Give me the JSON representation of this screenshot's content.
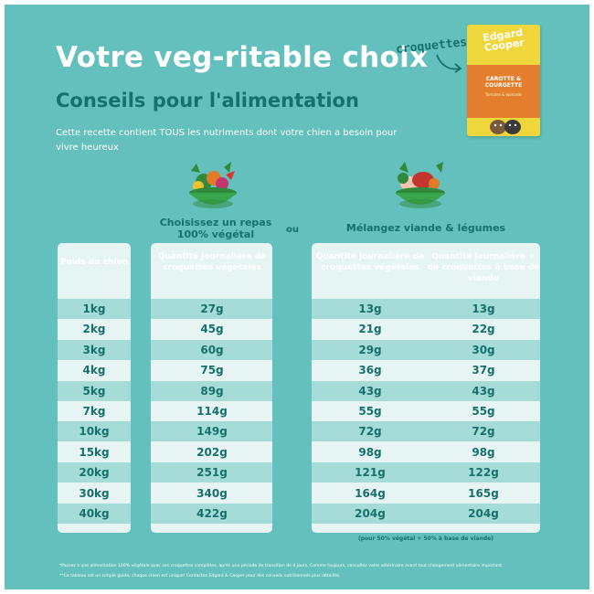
{
  "header": {
    "title": "Votre veg-ritable choix",
    "subtitle": "Conseils pour l'alimentation",
    "intro": "Cette recette contient TOUS les nutriments dont votre chien a besoin pour vivre heureux"
  },
  "product": {
    "pointer_label": "croquettes",
    "brand": "Edgard Cooper",
    "flavor": "CAROTTE & COURGETTE",
    "subline": "Tomates & épinards"
  },
  "choices": {
    "veg_heading": "Choisissez un repas 100% végétal",
    "or": "ou",
    "mix_heading": "Mélangez viande & légumes"
  },
  "table": {
    "columns": [
      "Poids du chien",
      "Quantité journalière de croquettes végétales",
      "Quantité journalière de croquettes végétales",
      "Quantité journalière + de croquettes à base de viande"
    ],
    "rows": [
      [
        "1kg",
        "27g",
        "13g",
        "13g"
      ],
      [
        "2kg",
        "45g",
        "21g",
        "22g"
      ],
      [
        "3kg",
        "60g",
        "29g",
        "30g"
      ],
      [
        "4kg",
        "75g",
        "36g",
        "37g"
      ],
      [
        "5kg",
        "89g",
        "43g",
        "43g"
      ],
      [
        "7kg",
        "114g",
        "55g",
        "55g"
      ],
      [
        "10kg",
        "149g",
        "72g",
        "72g"
      ],
      [
        "15kg",
        "202g",
        "98g",
        "98g"
      ],
      [
        "20kg",
        "251g",
        "121g",
        "122g"
      ],
      [
        "30kg",
        "340g",
        "164g",
        "165g"
      ],
      [
        "40kg",
        "422g",
        "204g",
        "204g"
      ]
    ],
    "mix_footnote": "(pour 50% végétal + 50% à base de viande)"
  },
  "notes": {
    "note1": "*Passez à une alimentation 100% végétale avec ces croquettes complètes, après une période de transition de 4 jours. Comme toujours, consultez votre vétérinaire avant tout changement alimentaire important.",
    "note2": "**Ce tableau est un simple guide, chaque chien est unique! Contactez Edgard & Cooper pour des conseils nutritionnels plus détaillés."
  },
  "colors": {
    "background": "#63c0bc",
    "dark_teal": "#17706c",
    "panel": "#e6f5f4",
    "stripe": "#a6dcd8",
    "bowl_green": "#3aa64b",
    "bag_yellow": "#efd63a"
  },
  "icons": [
    "arrow-icon",
    "vegetable-bowl-icon",
    "meat-vegetable-bowl-icon",
    "dog-icon"
  ]
}
